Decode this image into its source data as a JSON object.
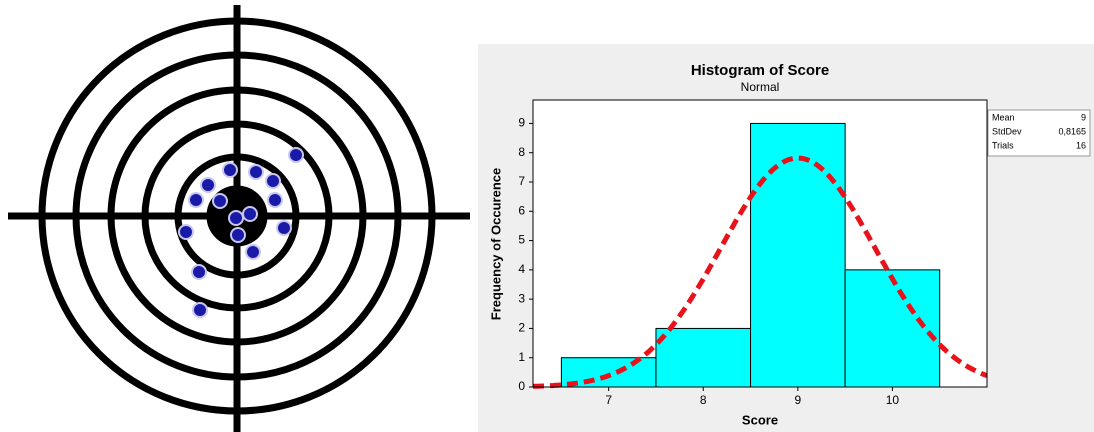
{
  "chart_data": {
    "type": "histogram",
    "title": "Histogram of Score",
    "subtitle": "Normal",
    "x_label": "Score",
    "y_label": "Frequency of Occurence",
    "bins": [
      6.5,
      7.5,
      8.5,
      9.5,
      10.5
    ],
    "values": [
      1,
      2,
      9,
      4
    ],
    "color": "#00ffff",
    "fit_color": "#e8121b",
    "xlim": [
      6.2,
      11.0
    ],
    "xticks": [
      7,
      8,
      9,
      10
    ],
    "ylim": [
      0,
      9.8
    ],
    "yticks": [
      0,
      1,
      2,
      3,
      4,
      5,
      6,
      7,
      8,
      9
    ],
    "stats": {
      "labels": [
        "Mean",
        "StdDev",
        "Trials"
      ],
      "values": [
        9,
        0.8165,
        16
      ],
      "value_labels": [
        "9",
        "0,8165",
        "16"
      ]
    }
  }
}
